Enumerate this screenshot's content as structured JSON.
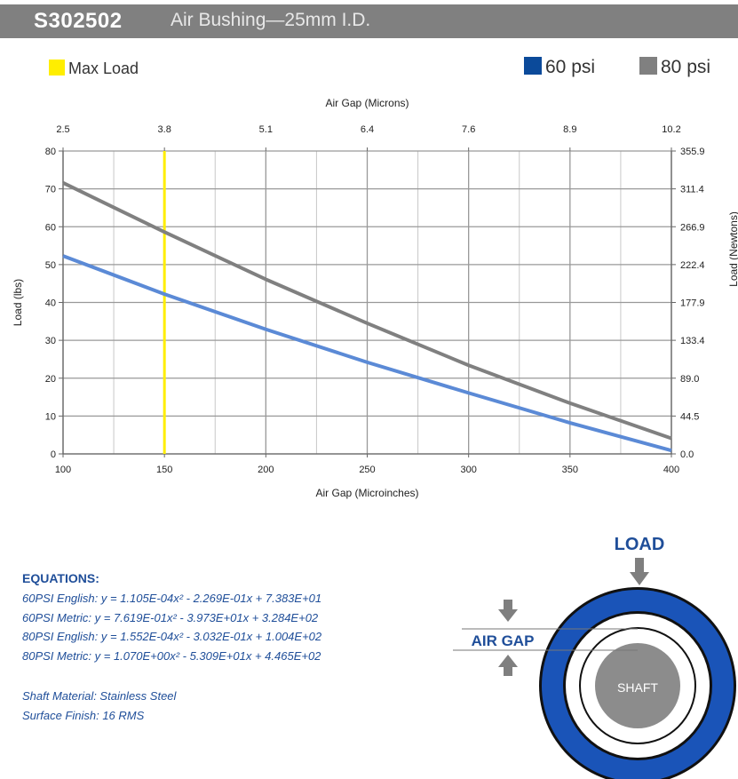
{
  "header": {
    "part_number": "S302502",
    "description": "Air Bushing—25mm I.D."
  },
  "legend": {
    "max_load_label": "Max Load",
    "s60_label": "60 psi",
    "s80_label": "80 psi"
  },
  "colors": {
    "header_bg": "#808080",
    "max_load": "#ffee00",
    "s60_swatch": "#0b4a9a",
    "s60_line": "#5b8ad6",
    "s80": "#808080",
    "text_blue": "#1f4e99"
  },
  "chart_data": {
    "type": "line",
    "x": [
      100,
      150,
      200,
      250,
      300,
      350,
      400
    ],
    "xlabel": "Air Gap (Microinches)",
    "xlim": [
      100,
      400
    ],
    "xticks": [
      "100",
      "150",
      "200",
      "250",
      "300",
      "350",
      "400"
    ],
    "top_axis_label": "Air Gap (Microns)",
    "top_ticks": [
      "2.5",
      "3.8",
      "5.1",
      "6.4",
      "7.6",
      "8.9",
      "10.2"
    ],
    "ylabel": "Load (lbs)",
    "ylim": [
      0,
      80
    ],
    "yticks": [
      "0",
      "10",
      "20",
      "30",
      "40",
      "50",
      "60",
      "70",
      "80"
    ],
    "right_axis_label": "Load (Newtons)",
    "right_ticks": [
      "0.0",
      "44.5",
      "89.0",
      "133.4",
      "177.9",
      "222.4",
      "266.9",
      "311.4",
      "355.9"
    ],
    "grid": true,
    "max_load_x": 150,
    "series": [
      {
        "name": "60 psi",
        "values": [
          52.3,
          42.2,
          32.9,
          24.2,
          16.1,
          8.2,
          0.9
        ]
      },
      {
        "name": "80 psi",
        "values": [
          71.6,
          58.6,
          46.1,
          34.5,
          23.4,
          13.4,
          4.1
        ]
      }
    ]
  },
  "equations": {
    "title": "EQUATIONS:",
    "lines": [
      "60PSI English:  y = 1.105E-04x² - 2.269E-01x + 7.383E+01",
      "60PSI Metric:  y = 7.619E-01x² - 3.973E+01x + 3.284E+02",
      "80PSI English:  y = 1.552E-04x² - 3.032E-01x + 1.004E+02",
      "80PSI Metric:  y = 1.070E+00x² - 5.309E+01x + 4.465E+02"
    ],
    "shaft_material": "Shaft Material:  Stainless Steel",
    "surface_finish": "Surface Finish:  16 RMS"
  },
  "diagram": {
    "load_label": "LOAD",
    "air_gap_label": "AIR GAP",
    "shaft_label": "SHAFT"
  }
}
